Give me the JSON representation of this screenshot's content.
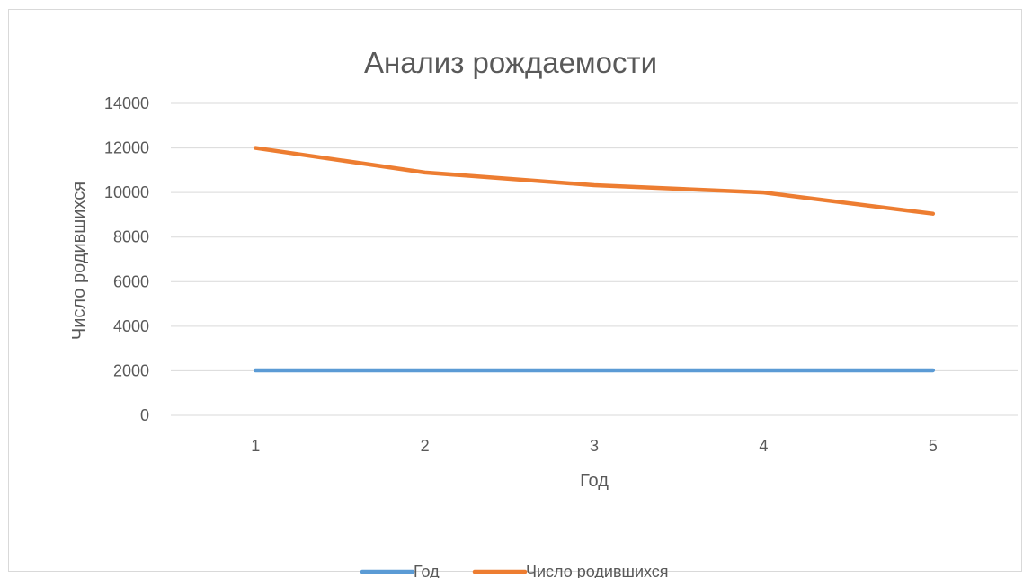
{
  "chart_data": {
    "type": "line",
    "title": "Анализ рождаемости",
    "xlabel": "Год",
    "ylabel": "Число родившихся",
    "categories": [
      "1",
      "2",
      "3",
      "4",
      "5"
    ],
    "ylim": [
      0,
      14000
    ],
    "yticks": [
      "0",
      "2000",
      "4000",
      "6000",
      "8000",
      "10000",
      "12000",
      "14000"
    ],
    "grid": true,
    "legend_position": "bottom",
    "series": [
      {
        "name": "Год",
        "values": [
          2015,
          2016,
          2017,
          2018,
          2019
        ],
        "color": "#5b9bd5"
      },
      {
        "name": "Число родившихся",
        "values": [
          12000,
          10900,
          10330,
          10000,
          9050
        ],
        "color": "#ed7d31"
      }
    ]
  }
}
